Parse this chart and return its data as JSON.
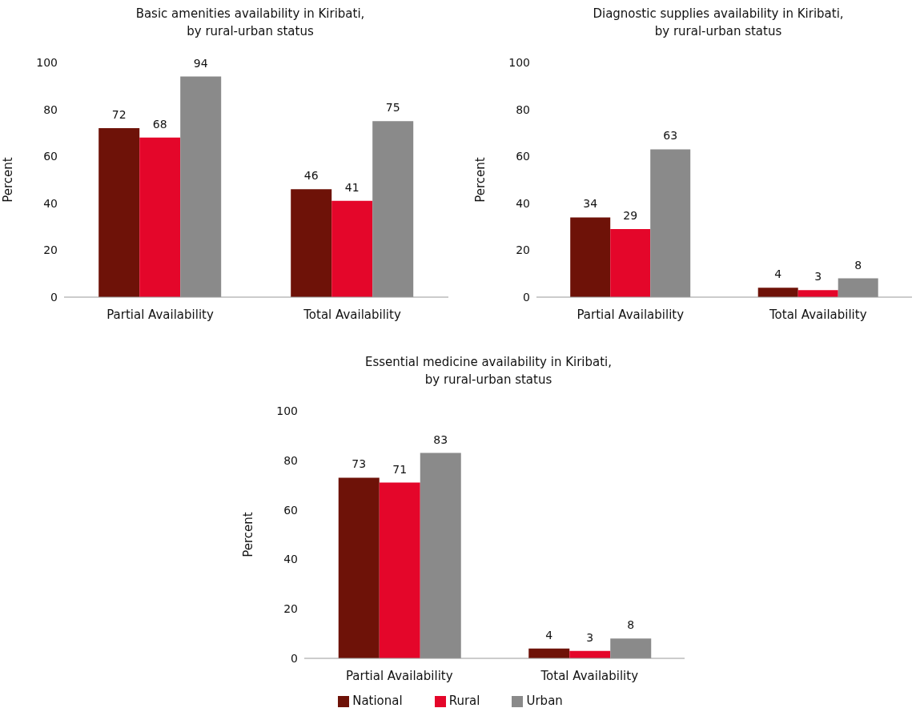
{
  "chart_data": [
    {
      "type": "bar",
      "title": "Basic amenities availability in Kiribati,\nby rural-urban status",
      "ylabel": "Percent",
      "categories": [
        "Partial Availability",
        "Total Availability"
      ],
      "series": [
        {
          "color": "#6e1208",
          "values": [
            72,
            46
          ]
        },
        {
          "color": "#e4062a",
          "values": [
            68,
            41
          ]
        },
        {
          "color": "#8a8a8a",
          "values": [
            94,
            75
          ]
        }
      ],
      "ylim": [
        0,
        100
      ],
      "yticks": [
        0,
        20,
        40,
        60,
        80,
        100
      ],
      "grid": false,
      "data_labels": true,
      "legend": false
    },
    {
      "type": "bar",
      "title": "Diagnostic supplies availability in Kiribati,\nby rural-urban status",
      "ylabel": "Percent",
      "categories": [
        "Partial Availability",
        "Total Availability"
      ],
      "series": [
        {
          "color": "#6e1208",
          "values": [
            34,
            4
          ]
        },
        {
          "color": "#e4062a",
          "values": [
            29,
            3
          ]
        },
        {
          "color": "#8a8a8a",
          "values": [
            63,
            8
          ]
        }
      ],
      "ylim": [
        0,
        100
      ],
      "yticks": [
        0,
        20,
        40,
        60,
        80,
        100
      ],
      "grid": false,
      "data_labels": true,
      "legend": false
    },
    {
      "type": "bar",
      "title": "Essential medicine availability in Kiribati,\nby rural-urban status",
      "ylabel": "Percent",
      "categories": [
        "Partial Availability",
        "Total Availability"
      ],
      "series": [
        {
          "name": "National",
          "color": "#6e1208",
          "values": [
            73,
            4
          ]
        },
        {
          "name": "Rural",
          "color": "#e4062a",
          "values": [
            71,
            3
          ]
        },
        {
          "name": "Urban",
          "color": "#8a8a8a",
          "values": [
            83,
            8
          ]
        }
      ],
      "ylim": [
        0,
        100
      ],
      "yticks": [
        0,
        20,
        40,
        60,
        80,
        100
      ],
      "grid": false,
      "data_labels": true,
      "legend": "bottom"
    }
  ]
}
